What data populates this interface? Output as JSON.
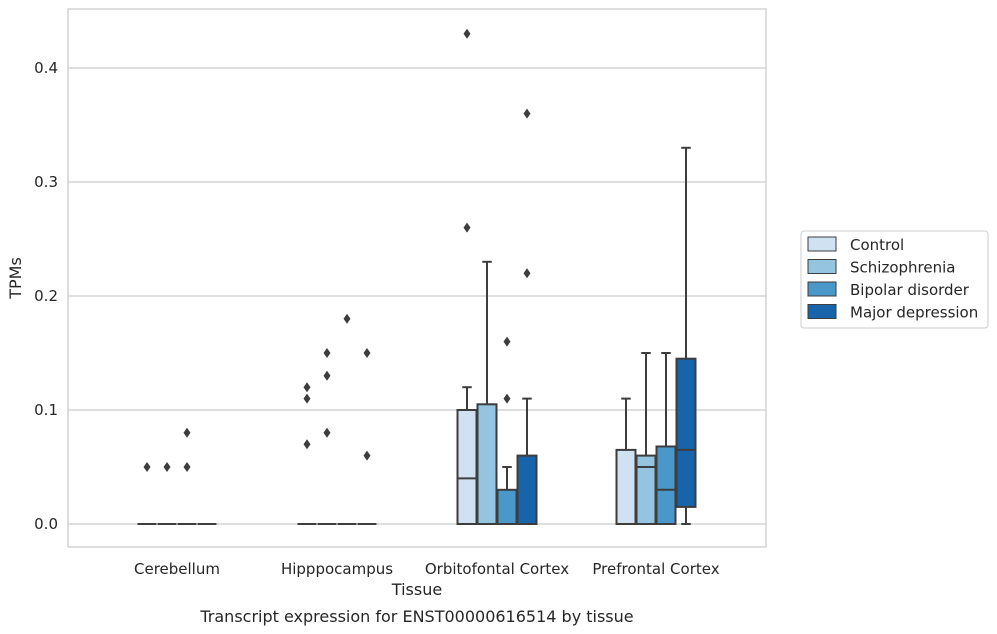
{
  "chart_data": {
    "type": "box",
    "xlabel": "Tissue",
    "ylabel": "TPMs",
    "caption": "Transcript expression for ENST00000616514 by tissue",
    "ylim": [
      -0.021,
      0.455
    ],
    "yticks": [
      "0.0",
      "0.1",
      "0.2",
      "0.3",
      "0.4"
    ],
    "ytick_values": [
      0.0,
      0.1,
      0.2,
      0.3,
      0.4
    ],
    "grid": "horizontal",
    "legend_position": "right-outside",
    "categories": [
      "Cerebellum",
      "Hipppocampus",
      "Orbitofontal Cortex",
      "Prefrontal Cortex"
    ],
    "series": [
      {
        "name": "Control",
        "color": "#d0e1f2",
        "boxes": [
          {
            "q1": 0,
            "median": 0,
            "q3": 0,
            "whisker_low": 0,
            "whisker_high": 0,
            "outliers": [
              0.05
            ]
          },
          {
            "q1": 0,
            "median": 0,
            "q3": 0,
            "whisker_low": 0,
            "whisker_high": 0,
            "outliers": [
              0.07,
              0.11,
              0.12
            ]
          },
          {
            "q1": 0,
            "median": 0.04,
            "q3": 0.1,
            "whisker_low": 0,
            "whisker_high": 0.12,
            "outliers": [
              0.26,
              0.43
            ]
          },
          {
            "q1": 0,
            "median": 0,
            "q3": 0.065,
            "whisker_low": 0,
            "whisker_high": 0.11,
            "outliers": []
          }
        ]
      },
      {
        "name": "Schizophrenia",
        "color": "#94c4df",
        "boxes": [
          {
            "q1": 0,
            "median": 0,
            "q3": 0,
            "whisker_low": 0,
            "whisker_high": 0,
            "outliers": [
              0.05
            ]
          },
          {
            "q1": 0,
            "median": 0,
            "q3": 0,
            "whisker_low": 0,
            "whisker_high": 0,
            "outliers": [
              0.08,
              0.13,
              0.15
            ]
          },
          {
            "q1": 0,
            "median": 0,
            "q3": 0.105,
            "whisker_low": 0,
            "whisker_high": 0.23,
            "outliers": []
          },
          {
            "q1": 0,
            "median": 0.05,
            "q3": 0.06,
            "whisker_low": 0,
            "whisker_high": 0.15,
            "outliers": []
          }
        ]
      },
      {
        "name": "Bipolar disorder",
        "color": "#4a98c9",
        "boxes": [
          {
            "q1": 0,
            "median": 0,
            "q3": 0,
            "whisker_low": 0,
            "whisker_high": 0,
            "outliers": [
              0.05,
              0.08
            ]
          },
          {
            "q1": 0,
            "median": 0,
            "q3": 0,
            "whisker_low": 0,
            "whisker_high": 0,
            "outliers": [
              0.18
            ]
          },
          {
            "q1": 0,
            "median": 0,
            "q3": 0.03,
            "whisker_low": 0,
            "whisker_high": 0.05,
            "outliers": [
              0.11,
              0.16
            ]
          },
          {
            "q1": 0,
            "median": 0.03,
            "q3": 0.068,
            "whisker_low": 0,
            "whisker_high": 0.15,
            "outliers": []
          }
        ]
      },
      {
        "name": "Major depression",
        "color": "#1764ab",
        "boxes": [
          {
            "q1": 0,
            "median": 0,
            "q3": 0,
            "whisker_low": 0,
            "whisker_high": 0,
            "outliers": []
          },
          {
            "q1": 0,
            "median": 0,
            "q3": 0,
            "whisker_low": 0,
            "whisker_high": 0,
            "outliers": [
              0.06,
              0.15
            ]
          },
          {
            "q1": 0,
            "median": 0,
            "q3": 0.06,
            "whisker_low": 0,
            "whisker_high": 0.11,
            "outliers": [
              0.22,
              0.36
            ]
          },
          {
            "q1": 0.015,
            "median": 0.065,
            "q3": 0.145,
            "whisker_low": 0,
            "whisker_high": 0.33,
            "outliers": []
          }
        ]
      }
    ]
  }
}
